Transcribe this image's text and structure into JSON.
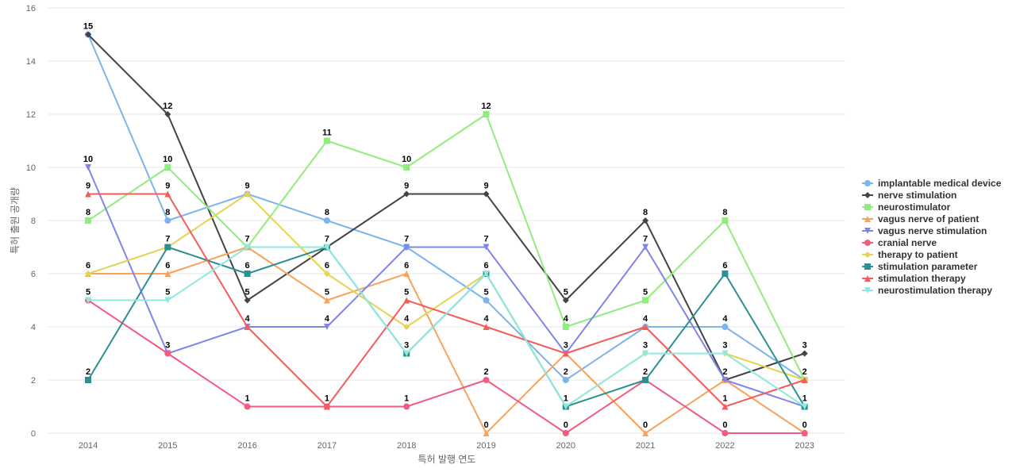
{
  "chart_data": {
    "type": "line",
    "title": "",
    "xlabel": "특허 발행 연도",
    "ylabel": "특허 출원 공개량",
    "ylim": [
      0,
      16
    ],
    "yticks": [
      0,
      2,
      4,
      6,
      8,
      10,
      12,
      14,
      16
    ],
    "grid": true,
    "legend_position": "right",
    "x": [
      "2014",
      "2015",
      "2016",
      "2017",
      "2018",
      "2019",
      "2020",
      "2021",
      "2022",
      "2023"
    ],
    "series": [
      {
        "name": "implantable medical device",
        "color": "#7cb5ec",
        "marker": "circle",
        "values": [
          15,
          8,
          9,
          8,
          7,
          5,
          2,
          4,
          4,
          2
        ]
      },
      {
        "name": "nerve stimulation",
        "color": "#434348",
        "marker": "diamond",
        "values": [
          15,
          12,
          5,
          7,
          9,
          9,
          5,
          8,
          2,
          3
        ]
      },
      {
        "name": "neurostimulator",
        "color": "#90ed7d",
        "marker": "square",
        "values": [
          8,
          10,
          7,
          11,
          10,
          12,
          4,
          5,
          8,
          2
        ]
      },
      {
        "name": "vagus nerve of patient",
        "color": "#f7a35c",
        "marker": "triangle",
        "values": [
          6,
          6,
          7,
          5,
          6,
          0,
          3,
          0,
          2,
          0
        ]
      },
      {
        "name": "vagus nerve stimulation",
        "color": "#8085e9",
        "marker": "triangle-down",
        "values": [
          10,
          3,
          4,
          4,
          7,
          7,
          3,
          7,
          2,
          1
        ]
      },
      {
        "name": "cranial nerve",
        "color": "#f15c80",
        "marker": "circle",
        "values": [
          5,
          3,
          1,
          1,
          1,
          2,
          0,
          2,
          0,
          0
        ]
      },
      {
        "name": "therapy to patient",
        "color": "#e4d354",
        "marker": "diamond",
        "values": [
          6,
          7,
          9,
          6,
          4,
          6,
          1,
          3,
          3,
          2
        ]
      },
      {
        "name": "stimulation parameter",
        "color": "#2b908f",
        "marker": "square",
        "values": [
          2,
          7,
          6,
          7,
          3,
          6,
          1,
          2,
          6,
          1
        ]
      },
      {
        "name": "stimulation therapy",
        "color": "#f45b5b",
        "marker": "triangle",
        "values": [
          9,
          9,
          4,
          1,
          5,
          4,
          3,
          4,
          1,
          2
        ]
      },
      {
        "name": "neurostimulation therapy",
        "color": "#91e8e1",
        "marker": "triangle-down",
        "values": [
          5,
          5,
          7,
          7,
          3,
          6,
          1,
          3,
          3,
          1
        ]
      }
    ],
    "data_labels": [
      {
        "x": "2014",
        "value": 15
      },
      {
        "x": "2014",
        "value": 10
      },
      {
        "x": "2014",
        "value": 9
      },
      {
        "x": "2014",
        "value": 8
      },
      {
        "x": "2014",
        "value": 6
      },
      {
        "x": "2014",
        "value": 5
      },
      {
        "x": "2014",
        "value": 2
      },
      {
        "x": "2015",
        "value": 12
      },
      {
        "x": "2015",
        "value": 10
      },
      {
        "x": "2015",
        "value": 9
      },
      {
        "x": "2015",
        "value": 8
      },
      {
        "x": "2015",
        "value": 7
      },
      {
        "x": "2015",
        "value": 6
      },
      {
        "x": "2015",
        "value": 5
      },
      {
        "x": "2015",
        "value": 3
      },
      {
        "x": "2016",
        "value": 9
      },
      {
        "x": "2016",
        "value": 7
      },
      {
        "x": "2016",
        "value": 6
      },
      {
        "x": "2016",
        "value": 5
      },
      {
        "x": "2016",
        "value": 4
      },
      {
        "x": "2016",
        "value": 1
      },
      {
        "x": "2017",
        "value": 11
      },
      {
        "x": "2017",
        "value": 8
      },
      {
        "x": "2017",
        "value": 7
      },
      {
        "x": "2017",
        "value": 6
      },
      {
        "x": "2017",
        "value": 5
      },
      {
        "x": "2017",
        "value": 4
      },
      {
        "x": "2017",
        "value": 1
      },
      {
        "x": "2018",
        "value": 10
      },
      {
        "x": "2018",
        "value": 9
      },
      {
        "x": "2018",
        "value": 7
      },
      {
        "x": "2018",
        "value": 6
      },
      {
        "x": "2018",
        "value": 5
      },
      {
        "x": "2018",
        "value": 4
      },
      {
        "x": "2018",
        "value": 3
      },
      {
        "x": "2018",
        "value": 1
      },
      {
        "x": "2019",
        "value": 12
      },
      {
        "x": "2019",
        "value": 9
      },
      {
        "x": "2019",
        "value": 7
      },
      {
        "x": "2019",
        "value": 6
      },
      {
        "x": "2019",
        "value": 5
      },
      {
        "x": "2019",
        "value": 4
      },
      {
        "x": "2019",
        "value": 2
      },
      {
        "x": "2019",
        "value": 0
      },
      {
        "x": "2020",
        "value": 5
      },
      {
        "x": "2020",
        "value": 4
      },
      {
        "x": "2020",
        "value": 3
      },
      {
        "x": "2020",
        "value": 2
      },
      {
        "x": "2020",
        "value": 1
      },
      {
        "x": "2020",
        "value": 0
      },
      {
        "x": "2021",
        "value": 8
      },
      {
        "x": "2021",
        "value": 7
      },
      {
        "x": "2021",
        "value": 5
      },
      {
        "x": "2021",
        "value": 4
      },
      {
        "x": "2021",
        "value": 3
      },
      {
        "x": "2021",
        "value": 2
      },
      {
        "x": "2021",
        "value": 0
      },
      {
        "x": "2022",
        "value": 8
      },
      {
        "x": "2022",
        "value": 6
      },
      {
        "x": "2022",
        "value": 4
      },
      {
        "x": "2022",
        "value": 3
      },
      {
        "x": "2022",
        "value": 2
      },
      {
        "x": "2022",
        "value": 1
      },
      {
        "x": "2022",
        "value": 0
      },
      {
        "x": "2023",
        "value": 3
      },
      {
        "x": "2023",
        "value": 2
      },
      {
        "x": "2023",
        "value": 1
      },
      {
        "x": "2023",
        "value": 0
      }
    ]
  }
}
